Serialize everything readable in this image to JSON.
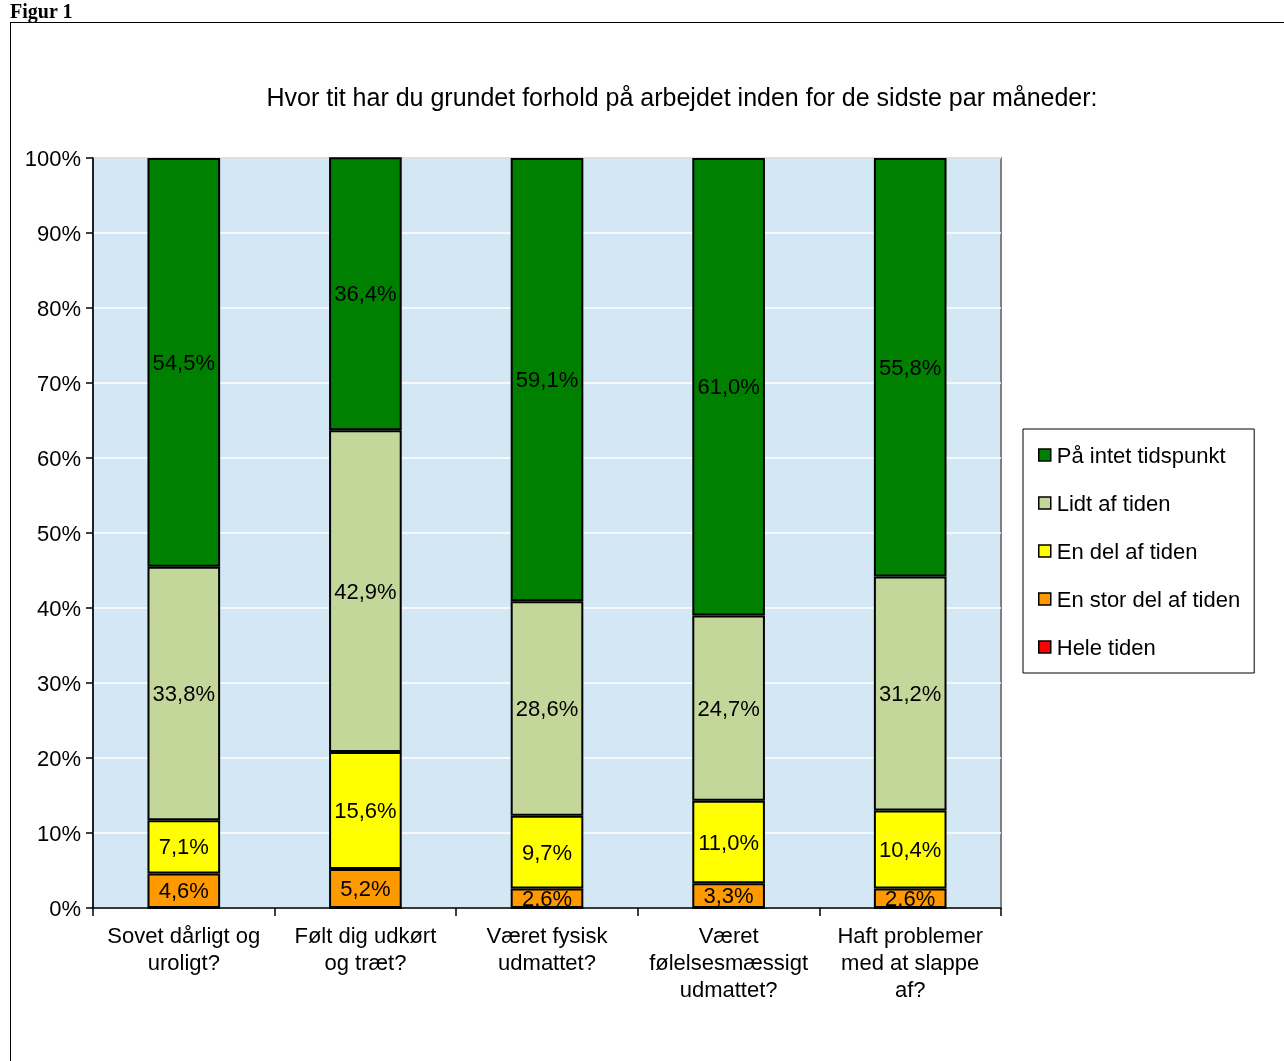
{
  "chart_data": {
    "type": "bar",
    "title": "Hvor tit har du grundet forhold på arbejdet inden for de sidste par måneder:",
    "annotations": [
      "Figur 1"
    ],
    "categories": [
      "Sovet dårligt og uroligt?",
      "Følt dig udkørt og træt?",
      "Været fysisk udmattet?",
      "Været følelsesmæssigt udmattet?",
      "Haft problemer med at slappe af?"
    ],
    "stacked": true,
    "series": [
      {
        "name": "Hele tiden",
        "color": "#ff0000",
        "values": [
          0,
          0,
          0,
          0,
          0
        ]
      },
      {
        "name": "En stor del af tiden",
        "color": "#ff9900",
        "values": [
          4.6,
          5.2,
          2.6,
          3.3,
          2.6
        ],
        "value_labels": [
          "4,6%",
          "5,2%",
          "2,6%",
          "3,3%",
          "2,6%"
        ]
      },
      {
        "name": "En del af tiden",
        "color": "#ffff00",
        "values": [
          7.1,
          15.6,
          9.7,
          11.0,
          10.4
        ],
        "value_labels": [
          "7,1%",
          "15,6%",
          "9,7%",
          "11,0%",
          "10,4%"
        ]
      },
      {
        "name": "Lidt af tiden",
        "color": "#c4d79b",
        "values": [
          33.8,
          42.9,
          28.6,
          24.7,
          31.2
        ],
        "value_labels": [
          "33,8%",
          "42,9%",
          "28,6%",
          "24,7%",
          "31,2%"
        ]
      },
      {
        "name": "På intet tidspunkt",
        "color": "#008000",
        "values": [
          54.5,
          36.4,
          59.1,
          61.0,
          55.8
        ],
        "value_labels": [
          "54,5%",
          "36,4%",
          "59,1%",
          "61,0%",
          "55,8%"
        ]
      }
    ],
    "ylim": [
      0,
      100
    ],
    "yticks": [
      {
        "value": 0,
        "label": "0%"
      },
      {
        "value": 10,
        "label": "10%"
      },
      {
        "value": 20,
        "label": "20%"
      },
      {
        "value": 30,
        "label": "30%"
      },
      {
        "value": 40,
        "label": "40%"
      },
      {
        "value": 50,
        "label": "50%"
      },
      {
        "value": 60,
        "label": "60%"
      },
      {
        "value": 70,
        "label": "70%"
      },
      {
        "value": 80,
        "label": "80%"
      },
      {
        "value": 90,
        "label": "90%"
      },
      {
        "value": 100,
        "label": "100%"
      }
    ],
    "grid": "y",
    "legend": "right"
  }
}
